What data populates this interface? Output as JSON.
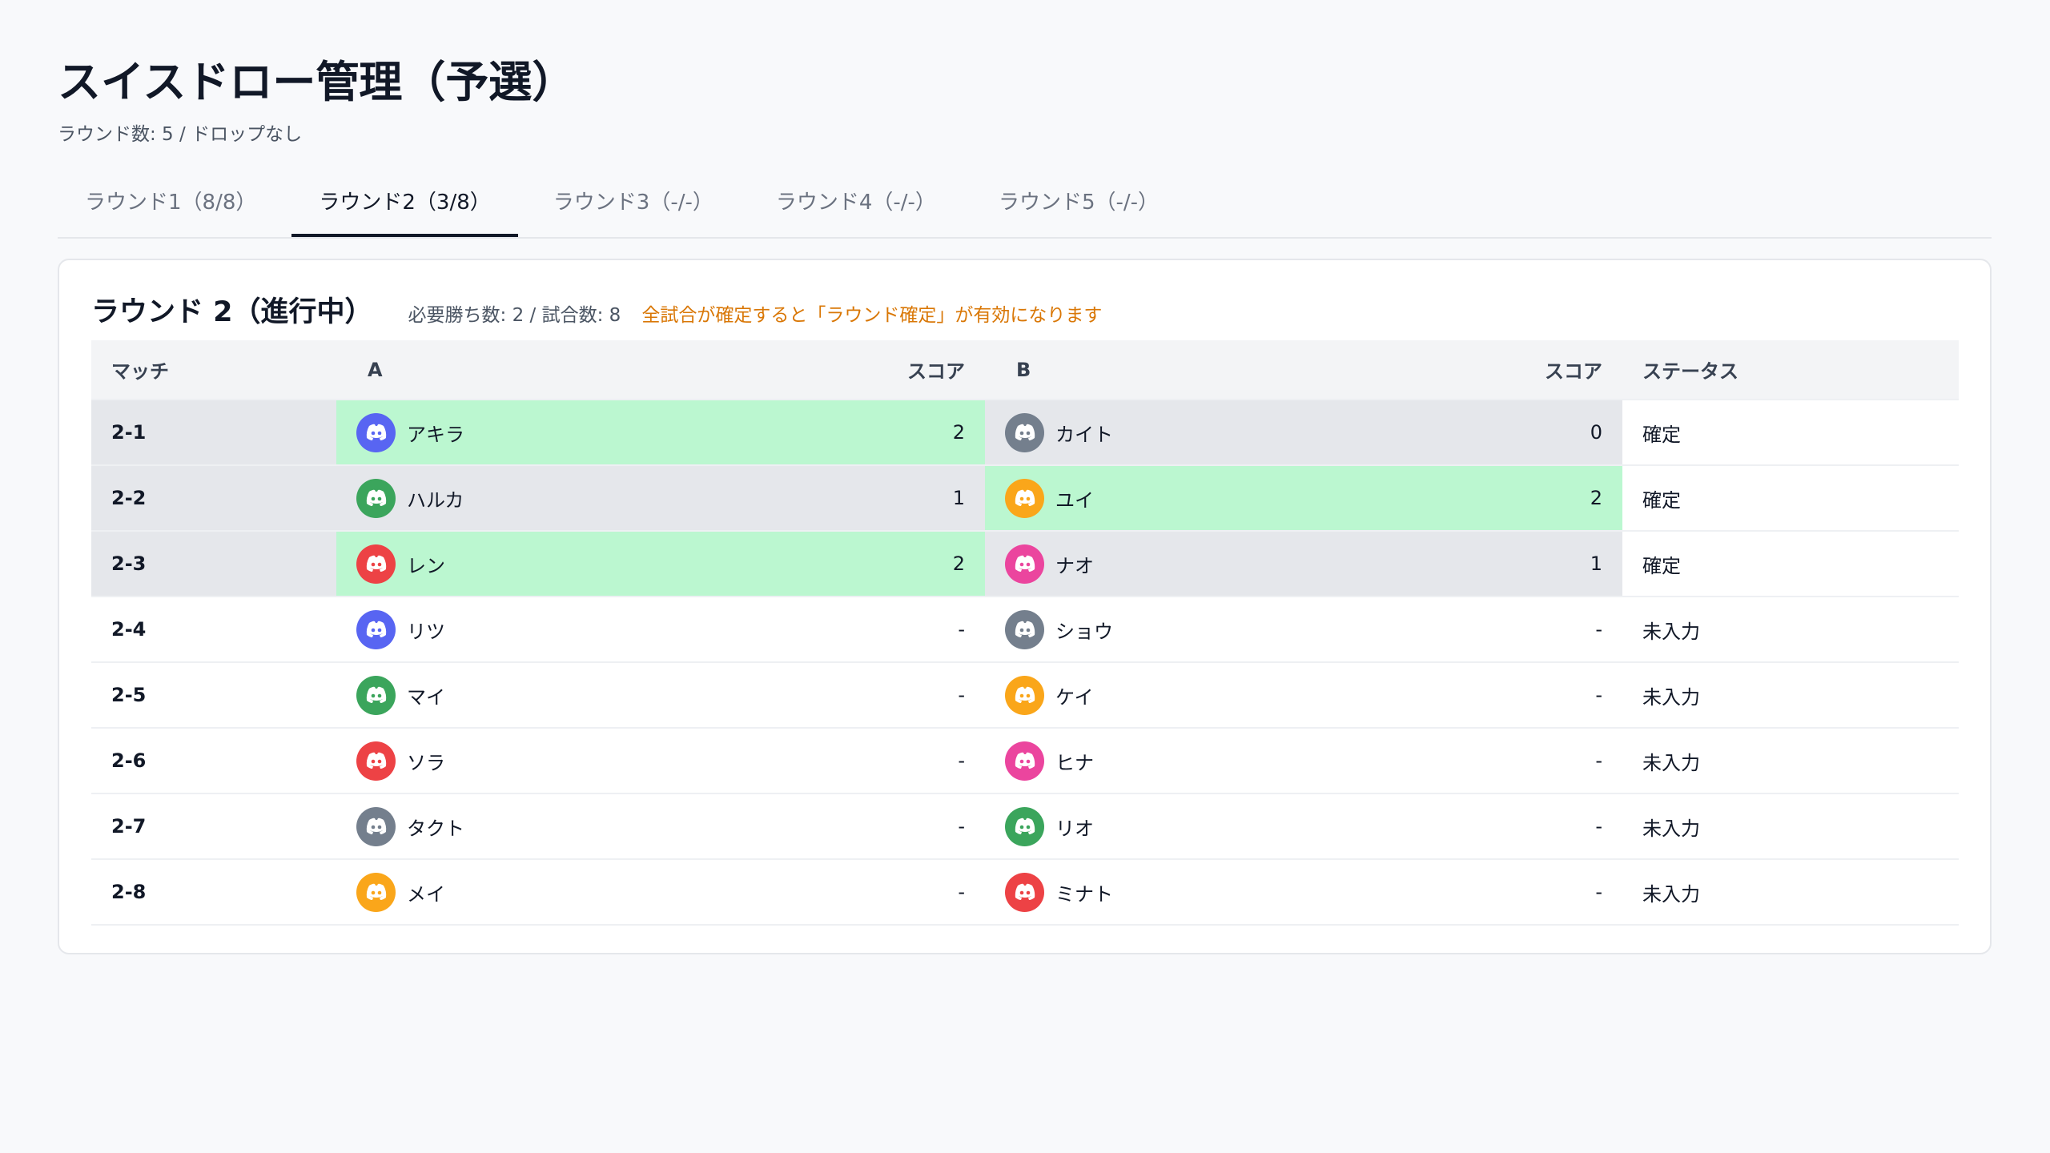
{
  "header": {
    "title": "スイスドロー管理（予選）",
    "subtitle": "ラウンド数: 5 / ドロップなし"
  },
  "tabs": {
    "items": [
      "ラウンド1（8/8）",
      "ラウンド2（3/8）",
      "ラウンド3（-/-）",
      "ラウンド4（-/-）",
      "ラウンド5（-/-）"
    ],
    "active": 1
  },
  "panel": {
    "title": "ラウンド 2（進行中）",
    "meta": "必要勝ち数: 2 / 試合数: 8",
    "notice": "全試合が確定すると「ラウンド確定」が有効になります"
  },
  "table": {
    "columns": [
      "マッチ",
      "A",
      "スコア",
      "B",
      "スコア",
      "ステータス"
    ],
    "rows": [
      {
        "match": "2-1",
        "a": {
          "name": "アキラ",
          "color": "#5865f2",
          "score": 2
        },
        "b": {
          "name": "カイト",
          "color": "#747f8d",
          "score": 0
        },
        "status": "確定"
      },
      {
        "match": "2-2",
        "a": {
          "name": "ハルカ",
          "color": "#3ba55c",
          "score": 1
        },
        "b": {
          "name": "ユイ",
          "color": "#faa61a",
          "score": 2
        },
        "status": "確定"
      },
      {
        "match": "2-3",
        "a": {
          "name": "レン",
          "color": "#ed4245",
          "score": 2
        },
        "b": {
          "name": "ナオ",
          "color": "#eb459e",
          "score": 1
        },
        "status": "確定"
      },
      {
        "match": "2-4",
        "a": {
          "name": "リツ",
          "color": "#5865f2",
          "score": "-"
        },
        "b": {
          "name": "ショウ",
          "color": "#747f8d",
          "score": "-"
        },
        "status": "未入力"
      },
      {
        "match": "2-5",
        "a": {
          "name": "マイ",
          "color": "#3ba55c",
          "score": "-"
        },
        "b": {
          "name": "ケイ",
          "color": "#faa61a",
          "score": "-"
        },
        "status": "未入力"
      },
      {
        "match": "2-6",
        "a": {
          "name": "ソラ",
          "color": "#ed4245",
          "score": "-"
        },
        "b": {
          "name": "ヒナ",
          "color": "#eb459e",
          "score": "-"
        },
        "status": "未入力"
      },
      {
        "match": "2-7",
        "a": {
          "name": "タクト",
          "color": "#747f8d",
          "score": "-"
        },
        "b": {
          "name": "リオ",
          "color": "#3ba55c",
          "score": "-"
        },
        "status": "未入力"
      },
      {
        "match": "2-8",
        "a": {
          "name": "メイ",
          "color": "#faa61a",
          "score": "-"
        },
        "b": {
          "name": "ミナト",
          "color": "#ed4245",
          "score": "-"
        },
        "status": "未入力"
      }
    ]
  }
}
